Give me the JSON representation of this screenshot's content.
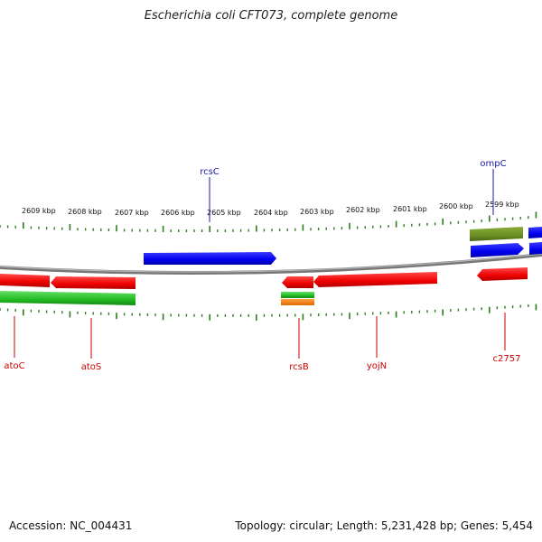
{
  "title": "Escherichia coli CFT073, complete genome",
  "footer": {
    "accession": "Accession: NC_004431",
    "summary": "Topology: circular; Length: 5,231,428 bp; Genes: 5,454"
  },
  "colors": {
    "backbone": "#8a8a8a",
    "tick": "#2e7d1e",
    "plus_gene": "#0000ff",
    "minus_gene": "#ff0000",
    "green_feature": "#33cc33",
    "olive_feature": "#6b8e23",
    "orange_feature": "#ff8000",
    "top_label": "#1a1aa6",
    "bottom_label": "#cc0000"
  },
  "scale_labels": [
    "2609 kbp",
    "2608 kbp",
    "2607 kbp",
    "2606 kbp",
    "2605 kbp",
    "2604 kbp",
    "2603 kbp",
    "2602 kbp",
    "2601 kbp",
    "2600 kbp",
    "2599 kbp"
  ],
  "top_gene_labels": [
    "rcsC",
    "ompC"
  ],
  "bottom_gene_labels": [
    "atoC",
    "atoS",
    "rcsB",
    "yojN",
    "c2757"
  ]
}
